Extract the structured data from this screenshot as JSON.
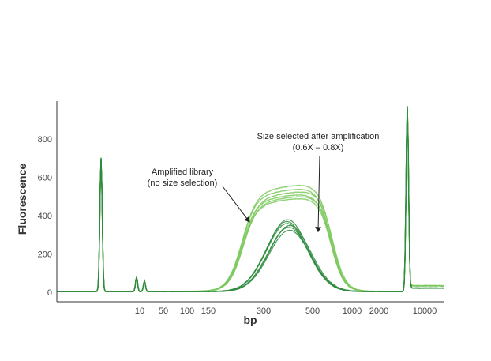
{
  "chart_data": {
    "type": "line",
    "xlabel": "bp",
    "ylabel": "Fluorescence",
    "ylim": [
      0,
      1000
    ],
    "yticks": [
      0,
      200,
      400,
      600,
      800
    ],
    "xticks": [
      "10",
      "50",
      "100",
      "150",
      "300",
      "500",
      "1000",
      "2000",
      "10000"
    ],
    "grid": false,
    "legend": "none",
    "colors": {
      "amplified": "#7dc95e",
      "size_selected": "#2e8b3e",
      "axis": "#333333"
    },
    "markers": [
      {
        "bp": 8,
        "fluorescence": 700
      },
      {
        "bp": 10000,
        "fluorescence": 970
      }
    ],
    "series": [
      {
        "group": "amplified",
        "peak_bp": 500,
        "peak_fluorescence": 560
      },
      {
        "group": "amplified",
        "peak_bp": 500,
        "peak_fluorescence": 540
      },
      {
        "group": "amplified",
        "peak_bp": 500,
        "peak_fluorescence": 525
      },
      {
        "group": "amplified",
        "peak_bp": 500,
        "peak_fluorescence": 510
      },
      {
        "group": "amplified",
        "peak_bp": 500,
        "peak_fluorescence": 500
      },
      {
        "group": "amplified",
        "peak_bp": 500,
        "peak_fluorescence": 490
      },
      {
        "group": "size_selected",
        "peak_bp": 400,
        "peak_fluorescence": 375
      },
      {
        "group": "size_selected",
        "peak_bp": 400,
        "peak_fluorescence": 365
      },
      {
        "group": "size_selected",
        "peak_bp": 400,
        "peak_fluorescence": 355
      },
      {
        "group": "size_selected",
        "peak_bp": 400,
        "peak_fluorescence": 345
      },
      {
        "group": "size_selected",
        "peak_bp": 400,
        "peak_fluorescence": 335
      },
      {
        "group": "size_selected",
        "peak_bp": 400,
        "peak_fluorescence": 320
      }
    ],
    "annotations": [
      {
        "lines": [
          "Amplified library",
          "(no size selection)"
        ],
        "target_bp": 300,
        "target_fluorescence": 380
      },
      {
        "lines": [
          "Size selected after amplification",
          "(0.6X – 0.8X)"
        ],
        "target_bp": 500,
        "target_fluorescence": 300
      }
    ]
  }
}
